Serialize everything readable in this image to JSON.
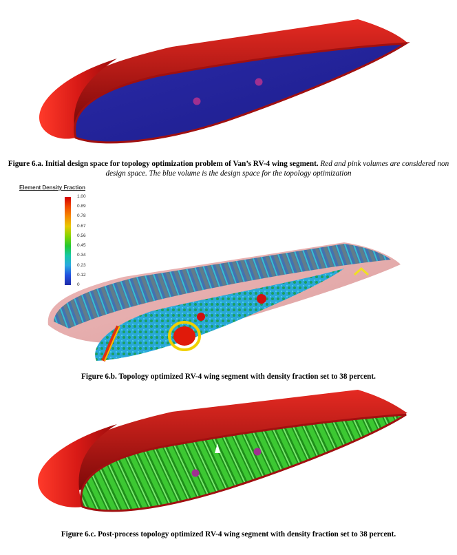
{
  "figures": [
    {
      "id": "6a",
      "caption_bold": "Figure 6.a. Initial design space for topology optimization problem of Van’s RV-4 wing segment.",
      "caption_italic": " Red and pink volumes are considered non design space.  The blue volume is the design space for the topology optimization"
    },
    {
      "id": "6b",
      "caption_bold": "Figure 6.b. Topology optimized RV-4 wing segment with density fraction set to 38 percent."
    },
    {
      "id": "6c",
      "caption_bold": "Figure 6.c. Post-process topology optimized RV-4 wing segment with density fraction set to 38 percent."
    }
  ],
  "legend": {
    "title": "Element Density Fraction",
    "ticks": [
      "1.00",
      "0.89",
      "0.78",
      "0.67",
      "0.56",
      "0.45",
      "0.34",
      "0.23",
      "0.12",
      "0"
    ],
    "colors": [
      "#d40000",
      "#f04a00",
      "#f58a00",
      "#e8c800",
      "#86d400",
      "#22c830",
      "#16c8a8",
      "#2aa8e0",
      "#2050e0",
      "#1e2aa8"
    ]
  },
  "colors": {
    "non_design_red": "#c81616",
    "design_blue": "#22229a",
    "pink_marker": "#a03090",
    "optimized_green": "#2fb82a"
  }
}
